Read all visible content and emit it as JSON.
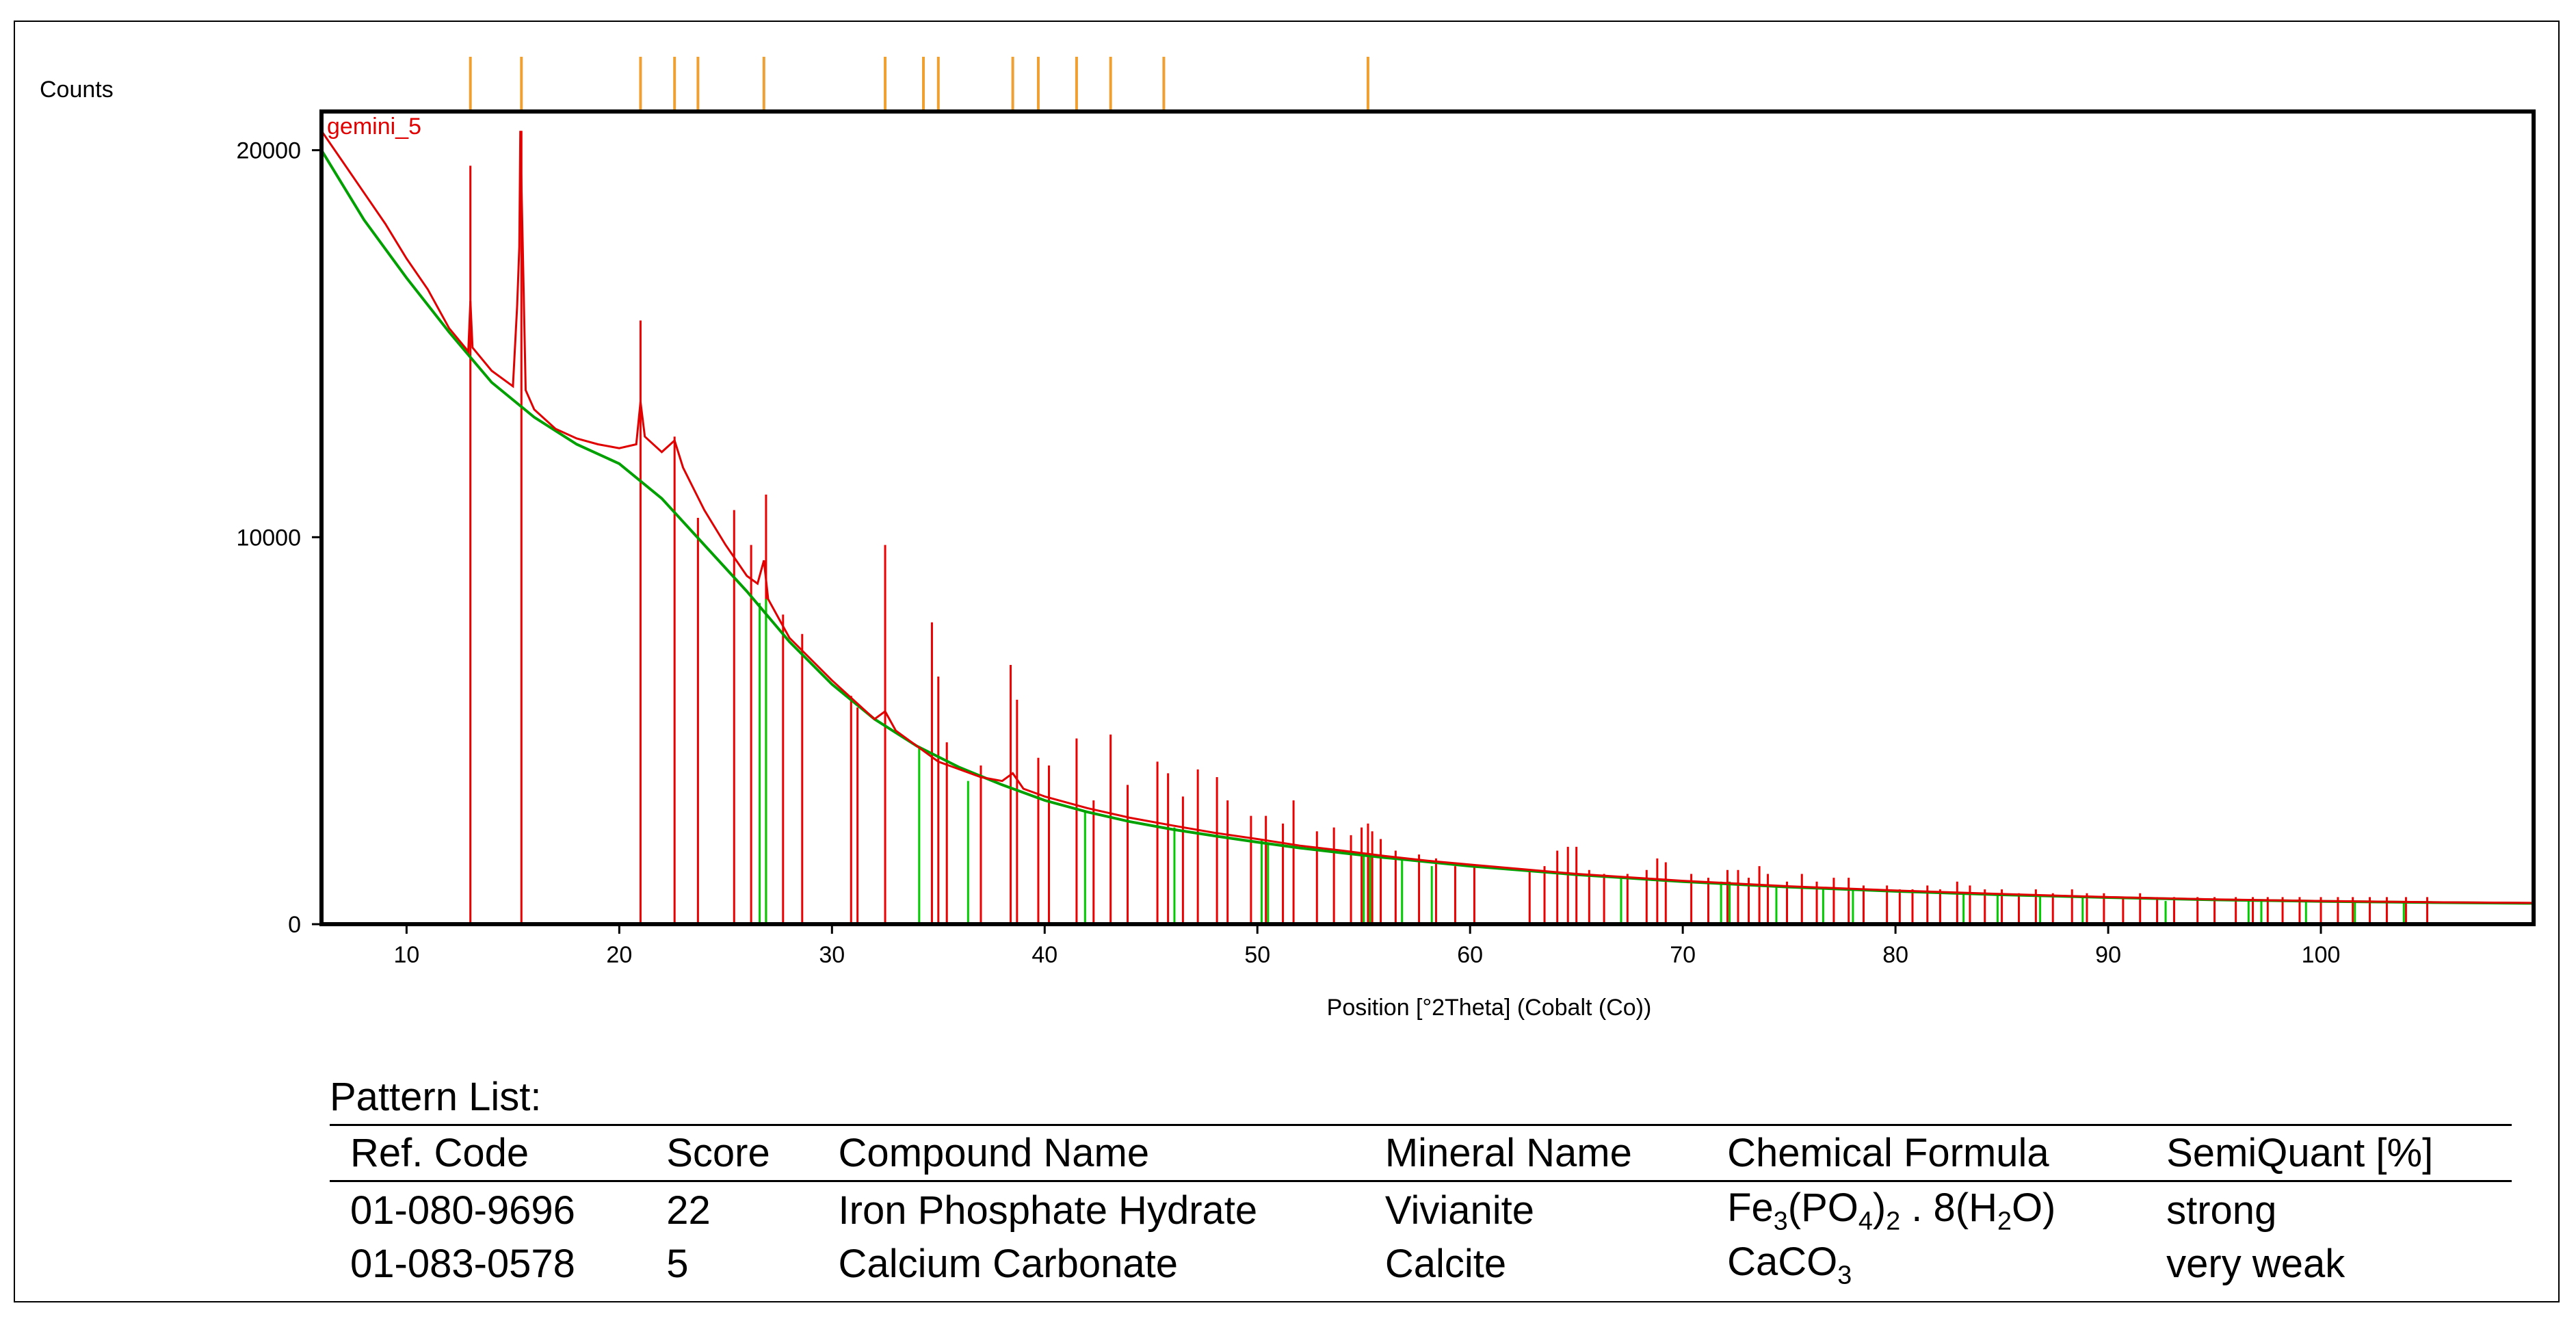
{
  "chart_data": {
    "type": "line",
    "ylabel": "Counts",
    "xlabel": "Position [°2Theta] (Cobalt (Co))",
    "sample_label": "gemini_5",
    "xlim": [
      6,
      110
    ],
    "ylim": [
      0,
      21000
    ],
    "x_ticks": [
      10,
      20,
      30,
      40,
      50,
      60,
      70,
      80,
      90,
      100
    ],
    "y_ticks": [
      0,
      10000,
      20000
    ],
    "series": [],
    "background_points": [
      [
        6,
        20000
      ],
      [
        8,
        18200
      ],
      [
        10,
        16700
      ],
      [
        12,
        15300
      ],
      [
        14,
        14000
      ],
      [
        16,
        13100
      ],
      [
        18,
        12400
      ],
      [
        20,
        11900
      ],
      [
        22,
        11000
      ],
      [
        24,
        9800
      ],
      [
        26,
        8600
      ],
      [
        28,
        7300
      ],
      [
        30,
        6200
      ],
      [
        32,
        5300
      ],
      [
        34,
        4600
      ],
      [
        36,
        4050
      ],
      [
        38,
        3600
      ],
      [
        40,
        3200
      ],
      [
        42,
        2900
      ],
      [
        44,
        2650
      ],
      [
        46,
        2450
      ],
      [
        48,
        2280
      ],
      [
        50,
        2120
      ],
      [
        52,
        1970
      ],
      [
        54,
        1840
      ],
      [
        56,
        1720
      ],
      [
        58,
        1610
      ],
      [
        60,
        1500
      ],
      [
        65,
        1280
      ],
      [
        70,
        1100
      ],
      [
        75,
        960
      ],
      [
        80,
        850
      ],
      [
        85,
        760
      ],
      [
        90,
        690
      ],
      [
        95,
        630
      ],
      [
        100,
        590
      ],
      [
        105,
        560
      ],
      [
        110,
        540
      ]
    ],
    "observed_points": [
      [
        6,
        20500
      ],
      [
        7,
        19700
      ],
      [
        8,
        18900
      ],
      [
        9,
        18100
      ],
      [
        10,
        17200
      ],
      [
        11,
        16400
      ],
      [
        12,
        15400
      ],
      [
        12.9,
        14800
      ],
      [
        13,
        16100
      ],
      [
        13.1,
        14900
      ],
      [
        14,
        14300
      ],
      [
        15,
        13900
      ],
      [
        15.2,
        16000
      ],
      [
        15.3,
        17500
      ],
      [
        15.35,
        20500
      ],
      [
        15.45,
        17800
      ],
      [
        15.6,
        13800
      ],
      [
        16,
        13300
      ],
      [
        17,
        12800
      ],
      [
        18,
        12550
      ],
      [
        19,
        12400
      ],
      [
        20,
        12300
      ],
      [
        20.8,
        12400
      ],
      [
        21,
        13500
      ],
      [
        21.2,
        12600
      ],
      [
        22,
        12200
      ],
      [
        22.6,
        12500
      ],
      [
        23,
        11800
      ],
      [
        24,
        10700
      ],
      [
        25,
        9800
      ],
      [
        26,
        9000
      ],
      [
        26.5,
        8800
      ],
      [
        26.8,
        9400
      ],
      [
        27,
        8400
      ],
      [
        28,
        7400
      ],
      [
        30,
        6300
      ],
      [
        32,
        5300
      ],
      [
        32.5,
        5500
      ],
      [
        33,
        5000
      ],
      [
        34,
        4600
      ],
      [
        35,
        4200
      ],
      [
        36,
        4000
      ],
      [
        37,
        3800
      ],
      [
        38,
        3700
      ],
      [
        38.5,
        3900
      ],
      [
        39,
        3500
      ],
      [
        40,
        3300
      ],
      [
        42,
        3000
      ],
      [
        44,
        2750
      ],
      [
        46,
        2550
      ],
      [
        48,
        2360
      ],
      [
        50,
        2200
      ],
      [
        52,
        2030
      ],
      [
        54,
        1900
      ],
      [
        56,
        1760
      ],
      [
        58,
        1640
      ],
      [
        60,
        1540
      ],
      [
        65,
        1300
      ],
      [
        70,
        1120
      ],
      [
        75,
        980
      ],
      [
        80,
        870
      ],
      [
        85,
        780
      ],
      [
        90,
        700
      ],
      [
        95,
        640
      ],
      [
        100,
        600
      ],
      [
        105,
        570
      ],
      [
        110,
        550
      ]
    ],
    "ref_lines_orange_top": [
      13.0,
      15.4,
      21.0,
      22.6,
      23.7,
      26.8,
      32.5,
      34.3,
      35.0,
      38.5,
      39.7,
      41.5,
      43.1,
      45.6,
      55.2
    ],
    "ref_lines_red": [
      [
        13.0,
        19600
      ],
      [
        15.4,
        20500
      ],
      [
        21.0,
        15600
      ],
      [
        22.6,
        12600
      ],
      [
        23.7,
        10500
      ],
      [
        25.4,
        10700
      ],
      [
        26.2,
        9800
      ],
      [
        26.9,
        11100
      ],
      [
        27.7,
        8000
      ],
      [
        28.6,
        7500
      ],
      [
        30.9,
        5900
      ],
      [
        31.2,
        5600
      ],
      [
        32.5,
        9800
      ],
      [
        34.7,
        7800
      ],
      [
        35.0,
        6400
      ],
      [
        35.4,
        4700
      ],
      [
        37.0,
        4100
      ],
      [
        38.4,
        6700
      ],
      [
        38.7,
        5800
      ],
      [
        39.7,
        4300
      ],
      [
        40.2,
        4100
      ],
      [
        41.5,
        4800
      ],
      [
        42.3,
        3200
      ],
      [
        43.1,
        4900
      ],
      [
        43.9,
        3600
      ],
      [
        45.3,
        4200
      ],
      [
        45.8,
        3900
      ],
      [
        46.5,
        3300
      ],
      [
        47.2,
        4000
      ],
      [
        48.1,
        3800
      ],
      [
        48.6,
        3200
      ],
      [
        49.7,
        2800
      ],
      [
        50.4,
        2800
      ],
      [
        51.2,
        2600
      ],
      [
        51.7,
        3200
      ],
      [
        52.8,
        2400
      ],
      [
        53.6,
        2500
      ],
      [
        54.4,
        2300
      ],
      [
        54.9,
        2500
      ],
      [
        55.2,
        2600
      ],
      [
        55.4,
        2400
      ],
      [
        55.8,
        2200
      ],
      [
        56.5,
        1900
      ],
      [
        57.6,
        1800
      ],
      [
        58.4,
        1700
      ],
      [
        59.3,
        1500
      ],
      [
        60.2,
        1500
      ],
      [
        62.8,
        1400
      ],
      [
        63.5,
        1500
      ],
      [
        64.1,
        1900
      ],
      [
        64.6,
        2000
      ],
      [
        65.0,
        2000
      ],
      [
        65.6,
        1400
      ],
      [
        66.3,
        1300
      ],
      [
        67.4,
        1300
      ],
      [
        68.3,
        1400
      ],
      [
        68.8,
        1700
      ],
      [
        69.2,
        1600
      ],
      [
        70.4,
        1300
      ],
      [
        71.2,
        1200
      ],
      [
        72.1,
        1400
      ],
      [
        72.6,
        1400
      ],
      [
        73.1,
        1200
      ],
      [
        73.6,
        1500
      ],
      [
        74.0,
        1300
      ],
      [
        74.9,
        1100
      ],
      [
        75.6,
        1300
      ],
      [
        76.3,
        1100
      ],
      [
        77.1,
        1200
      ],
      [
        77.8,
        1200
      ],
      [
        78.5,
        1000
      ],
      [
        79.6,
        1000
      ],
      [
        80.2,
        900
      ],
      [
        80.8,
        900
      ],
      [
        81.5,
        1000
      ],
      [
        82.1,
        900
      ],
      [
        82.9,
        1100
      ],
      [
        83.5,
        1000
      ],
      [
        84.2,
        900
      ],
      [
        85.0,
        900
      ],
      [
        85.8,
        800
      ],
      [
        86.6,
        900
      ],
      [
        87.4,
        800
      ],
      [
        88.3,
        900
      ],
      [
        89.0,
        800
      ],
      [
        89.8,
        800
      ],
      [
        90.7,
        700
      ],
      [
        91.5,
        800
      ],
      [
        92.3,
        700
      ],
      [
        93.1,
        700
      ],
      [
        94.2,
        700
      ],
      [
        95.0,
        700
      ],
      [
        96.0,
        700
      ],
      [
        96.8,
        700
      ],
      [
        97.5,
        700
      ],
      [
        98.2,
        700
      ],
      [
        99.0,
        700
      ],
      [
        100.0,
        700
      ],
      [
        100.8,
        700
      ],
      [
        101.5,
        700
      ],
      [
        102.3,
        700
      ],
      [
        103.1,
        700
      ],
      [
        104.0,
        700
      ],
      [
        105.0,
        700
      ]
    ],
    "ref_lines_green": [
      [
        26.6,
        8300
      ],
      [
        26.9,
        8400
      ],
      [
        34.1,
        4600
      ],
      [
        36.4,
        3700
      ],
      [
        41.9,
        2900
      ],
      [
        46.1,
        2500
      ],
      [
        50.2,
        2200
      ],
      [
        50.5,
        2100
      ],
      [
        55.0,
        1800
      ],
      [
        55.3,
        1800
      ],
      [
        56.8,
        1700
      ],
      [
        58.2,
        1500
      ],
      [
        67.1,
        1200
      ],
      [
        71.8,
        1100
      ],
      [
        72.2,
        1100
      ],
      [
        74.4,
        1000
      ],
      [
        76.6,
        900
      ],
      [
        78.0,
        900
      ],
      [
        83.2,
        800
      ],
      [
        84.8,
        800
      ],
      [
        86.8,
        700
      ],
      [
        88.8,
        700
      ],
      [
        92.7,
        600
      ],
      [
        96.6,
        600
      ],
      [
        97.2,
        600
      ],
      [
        99.3,
        600
      ],
      [
        101.6,
        600
      ],
      [
        103.9,
        600
      ]
    ]
  },
  "pattern_list": {
    "title": "Pattern List:",
    "headers": [
      "Ref. Code",
      "Score",
      "Compound Name",
      "Mineral Name",
      "Chemical Formula",
      "SemiQuant [%]"
    ],
    "rows": [
      {
        "ref_code": "01-080-9696",
        "score": "22",
        "compound": "Iron Phosphate Hydrate",
        "mineral": "Vivianite",
        "formula": [
          "Fe",
          "3",
          "(PO",
          "4",
          ")",
          "2",
          " . 8(H",
          "2",
          "O)"
        ],
        "semiquant": "strong"
      },
      {
        "ref_code": "01-083-0578",
        "score": "5",
        "compound": "Calcium Carbonate",
        "mineral": "Calcite",
        "formula": [
          "CaCO",
          "3"
        ],
        "semiquant": "very weak"
      }
    ]
  },
  "colors": {
    "observed": "#e00000",
    "background": "#00a000",
    "ref_red": "#ee0000",
    "ref_green": "#00cc00",
    "ref_orange": "#f0a030",
    "axis": "#000000"
  }
}
